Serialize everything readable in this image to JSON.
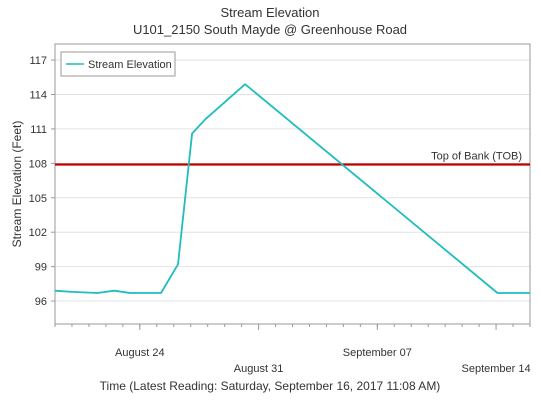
{
  "chart_data": {
    "type": "line",
    "title": "Stream Elevation",
    "subtitle": "U101_2150 South Mayde @ Greenhouse Road",
    "xlabel": "Time (Latest Reading: Saturday, September 16, 2017 11:08 AM)",
    "ylabel": "Stream Elevation (Feet)",
    "ylim": [
      94.0,
      118.4
    ],
    "xlim": [
      "2017-08-19",
      "2017-09-16"
    ],
    "yticks": [
      "96",
      "99",
      "102",
      "105",
      "108",
      "111",
      "114",
      "117"
    ],
    "xticks": [
      {
        "date": "2017-08-24",
        "label": "August 24",
        "row": 1
      },
      {
        "date": "2017-08-31",
        "label": "August 31",
        "row": 2
      },
      {
        "date": "2017-09-07",
        "label": "September 07",
        "row": 1
      },
      {
        "date": "2017-09-14",
        "label": "September 14",
        "row": 2
      }
    ],
    "grid": true,
    "legend_position": "top-left",
    "series": [
      {
        "name": "Stream Elevation",
        "color": "#1FBDBD",
        "points": [
          {
            "x": "2017-08-19 00:00",
            "y": 96.9
          },
          {
            "x": "2017-08-20 00:00",
            "y": 96.8
          },
          {
            "x": "2017-08-21 12:00",
            "y": 96.7
          },
          {
            "x": "2017-08-22 12:00",
            "y": 96.9
          },
          {
            "x": "2017-08-23 10:00",
            "y": 96.7
          },
          {
            "x": "2017-08-25 06:00",
            "y": 96.7
          },
          {
            "x": "2017-08-26 06:00",
            "y": 99.2
          },
          {
            "x": "2017-08-27 02:00",
            "y": 110.6
          },
          {
            "x": "2017-08-27 20:00",
            "y": 111.8
          },
          {
            "x": "2017-08-30 05:00",
            "y": 114.9
          },
          {
            "x": "2017-09-14 02:00",
            "y": 96.7
          },
          {
            "x": "2017-09-16 00:00",
            "y": 96.7
          }
        ]
      }
    ],
    "reference_lines": [
      {
        "label": "Top of Bank (TOB)",
        "y": 107.9,
        "color": "#C00000"
      }
    ]
  }
}
